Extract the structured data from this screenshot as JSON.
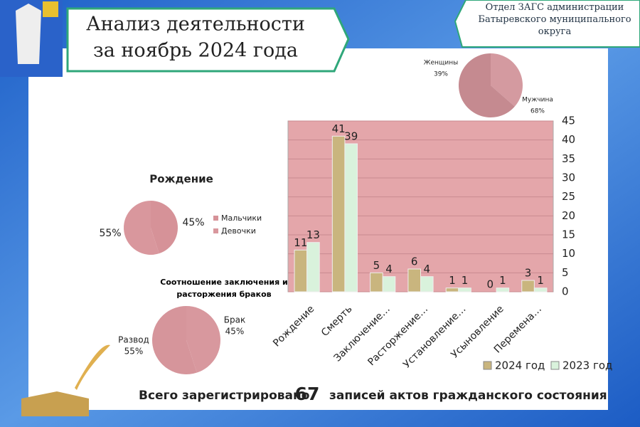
{
  "header": {
    "title_line1": "Анализ деятельности",
    "title_line2": "за ноябрь 2024 года",
    "org": "Отдел ЗАГС администрации Батыревского муниципального округа"
  },
  "footer": {
    "prefix": "Всего зарегистрировано",
    "count": 67,
    "suffix": "записей  актов гражданского состояния"
  },
  "chart_data": [
    {
      "type": "bar",
      "categories": [
        "Рождение",
        "Смерть",
        "Заключение…",
        "Расторжение…",
        "Установление…",
        "Усыновление",
        "Перемена…"
      ],
      "series": [
        {
          "name": "2024 год",
          "color": "#c9b57e",
          "values": [
            11,
            41,
            5,
            6,
            1,
            0,
            3
          ]
        },
        {
          "name": "2023 год",
          "color": "#d9f2dc",
          "values": [
            13,
            39,
            4,
            4,
            1,
            1,
            1
          ]
        }
      ],
      "ylim": [
        0,
        45
      ],
      "yticks": [
        0,
        5,
        10,
        15,
        20,
        25,
        30,
        35,
        40,
        45
      ],
      "grid": true,
      "legend": "bottom"
    },
    {
      "type": "pie",
      "categories": [
        "Женщины",
        "Мужчина"
      ],
      "values": [
        39,
        68
      ],
      "value_labels": [
        "39%",
        "68%"
      ],
      "colors": [
        "#d49aa0",
        "#c58a90"
      ]
    },
    {
      "type": "pie",
      "title": "Рождение",
      "categories": [
        "Мальчики",
        "Девочки"
      ],
      "values": [
        45,
        55
      ],
      "value_labels": [
        "45%",
        "55%"
      ],
      "colors": [
        "#d69298",
        "#d9979d"
      ],
      "legend": "right"
    },
    {
      "type": "pie",
      "title": "Соотношение заключения и расторжения браков",
      "categories": [
        "Брак",
        "Развод"
      ],
      "values": [
        45,
        55
      ],
      "value_labels": [
        "45%",
        "55%"
      ],
      "colors": [
        "#d8989e",
        "#d6959b"
      ]
    }
  ]
}
